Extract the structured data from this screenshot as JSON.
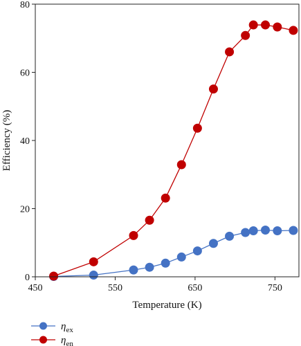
{
  "chart_data": {
    "type": "line",
    "xlabel": "Temperature (K)",
    "ylabel": "Efficiency (%)",
    "xlim": [
      450,
      780
    ],
    "ylim": [
      0,
      80
    ],
    "xticks": [
      450,
      550,
      650,
      750
    ],
    "yticks": [
      0,
      20,
      40,
      60,
      80
    ],
    "grid": false,
    "legend_position": "bottom-left",
    "series": [
      {
        "name": "η_ex",
        "label_main": "η",
        "label_sub": "ex",
        "color": "#4472c4",
        "x": [
          473,
          523,
          573,
          593,
          613,
          633,
          653,
          673,
          693,
          713,
          723,
          738,
          753,
          773
        ],
        "y": [
          0.1,
          0.5,
          2.0,
          2.8,
          4.0,
          5.8,
          7.6,
          9.8,
          11.9,
          13.0,
          13.5,
          13.7,
          13.5,
          13.6
        ]
      },
      {
        "name": "η_en",
        "label_main": "η",
        "label_sub": "en",
        "color": "#c00000",
        "x": [
          473,
          523,
          573,
          593,
          613,
          633,
          653,
          673,
          693,
          713,
          723,
          738,
          753,
          773
        ],
        "y": [
          0.2,
          4.4,
          12.1,
          16.6,
          23.1,
          32.9,
          43.6,
          55.1,
          66.0,
          70.8,
          73.9,
          73.9,
          73.3,
          72.3
        ]
      }
    ]
  }
}
